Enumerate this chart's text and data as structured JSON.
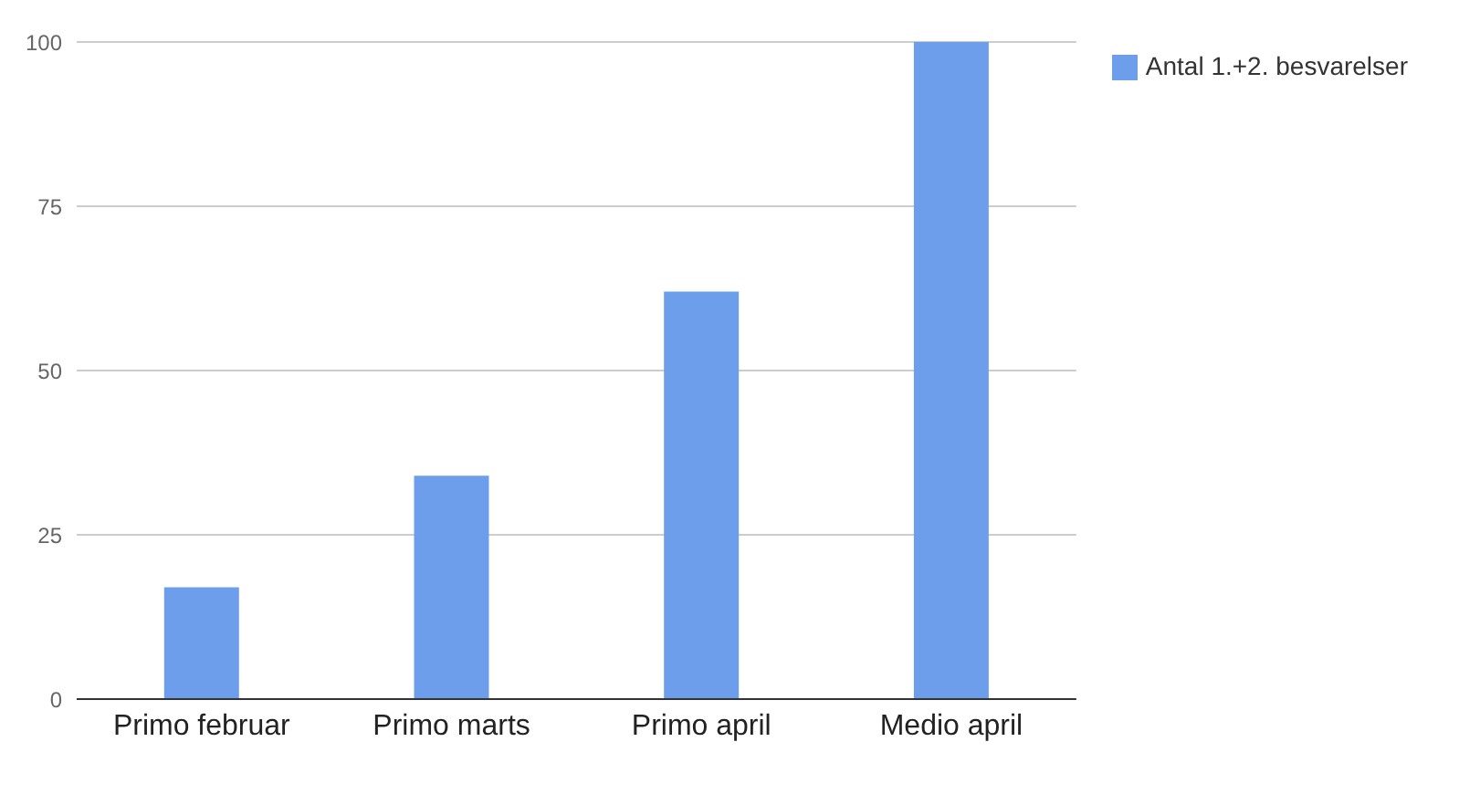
{
  "chart_data": {
    "type": "bar",
    "categories": [
      "Primo februar",
      "Primo marts",
      "Primo april",
      "Medio april"
    ],
    "series": [
      {
        "name": "Antal 1.+2. besvarelser",
        "color": "#6d9eeb",
        "values": [
          17,
          34,
          62,
          100
        ]
      }
    ],
    "ylim": [
      0,
      100
    ],
    "yticks": [
      0,
      25,
      50,
      75,
      100
    ],
    "grid": "y",
    "legend": "top right"
  }
}
